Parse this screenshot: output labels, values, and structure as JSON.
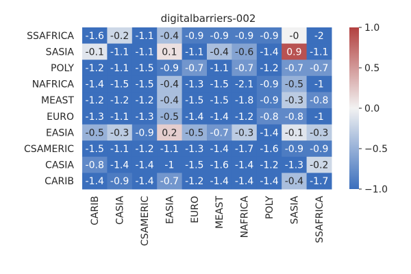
{
  "chart_data": {
    "type": "heatmap",
    "title": "digitalbarriers-002",
    "xlabel": "",
    "ylabel": "",
    "x_categories": [
      "CARIB",
      "CASIA",
      "CSAMERIC",
      "EASIA",
      "EURO",
      "MEAST",
      "NAFRICA",
      "POLY",
      "SASIA",
      "SSAFRICA"
    ],
    "y_categories": [
      "SSAFRICA",
      "SASIA",
      "POLY",
      "NAFRICA",
      "MEAST",
      "EURO",
      "EASIA",
      "CSAMERIC",
      "CASIA",
      "CARIB"
    ],
    "values": [
      [
        -1.6,
        -0.2,
        -1.1,
        -0.4,
        -0.9,
        -0.9,
        -0.9,
        -0.9,
        -0.0,
        -2.0
      ],
      [
        -0.1,
        -1.1,
        -1.1,
        0.1,
        -1.1,
        -0.4,
        -0.6,
        -1.4,
        0.9,
        -1.1
      ],
      [
        -1.2,
        -1.1,
        -1.5,
        -0.9,
        -0.7,
        -1.1,
        -0.7,
        -1.2,
        -0.7,
        -0.7
      ],
      [
        -1.4,
        -1.5,
        -1.5,
        -0.4,
        -1.3,
        -1.5,
        -2.1,
        -0.9,
        -0.5,
        -1.0
      ],
      [
        -1.2,
        -1.2,
        -1.2,
        -0.4,
        -1.5,
        -1.5,
        -1.8,
        -0.9,
        -0.3,
        -0.8
      ],
      [
        -1.3,
        -1.1,
        -1.3,
        -0.5,
        -1.4,
        -1.4,
        -1.2,
        -0.8,
        -0.8,
        -1.0
      ],
      [
        -0.5,
        -0.3,
        -0.9,
        0.2,
        -0.5,
        -0.7,
        -0.3,
        -1.4,
        -0.1,
        -0.3
      ],
      [
        -1.5,
        -1.1,
        -1.2,
        -1.1,
        -1.3,
        -1.4,
        -1.7,
        -1.6,
        -0.9,
        -0.9
      ],
      [
        -0.8,
        -1.4,
        -1.4,
        -1.0,
        -1.5,
        -1.6,
        -1.4,
        -1.2,
        -1.3,
        -0.2
      ],
      [
        -1.4,
        -0.9,
        -1.4,
        -0.7,
        -1.2,
        -1.4,
        -1.4,
        -1.4,
        -0.4,
        -1.7
      ]
    ],
    "display_labels": [
      [
        "-1.6",
        "-0.2",
        "-1.1",
        "-0.4",
        "-0.9",
        "-0.9",
        "-0.9",
        "-0.9",
        "-0",
        "-2"
      ],
      [
        "-0.1",
        "-1.1",
        "-1.1",
        "0.1",
        "-1.1",
        "-0.4",
        "-0.6",
        "-1.4",
        "0.9",
        "-1.1"
      ],
      [
        "-1.2",
        "-1.1",
        "-1.5",
        "-0.9",
        "-0.7",
        "-1.1",
        "-0.7",
        "-1.2",
        "-0.7",
        "-0.7"
      ],
      [
        "-1.4",
        "-1.5",
        "-1.5",
        "-0.4",
        "-1.3",
        "-1.5",
        "-2.1",
        "-0.9",
        "-0.5",
        "-1"
      ],
      [
        "-1.2",
        "-1.2",
        "-1.2",
        "-0.4",
        "-1.5",
        "-1.5",
        "-1.8",
        "-0.9",
        "-0.3",
        "-0.8"
      ],
      [
        "-1.3",
        "-1.1",
        "-1.3",
        "-0.5",
        "-1.4",
        "-1.4",
        "-1.2",
        "-0.8",
        "-0.8",
        "-1"
      ],
      [
        "-0.5",
        "-0.3",
        "-0.9",
        "0.2",
        "-0.5",
        "-0.7",
        "-0.3",
        "-1.4",
        "-0.1",
        "-0.3"
      ],
      [
        "-1.5",
        "-1.1",
        "-1.2",
        "-1.1",
        "-1.3",
        "-1.4",
        "-1.7",
        "-1.6",
        "-0.9",
        "-0.9"
      ],
      [
        "-0.8",
        "-1.4",
        "-1.4",
        "-1",
        "-1.5",
        "-1.6",
        "-1.4",
        "-1.2",
        "-1.3",
        "-0.2"
      ],
      [
        "-1.4",
        "-0.9",
        "-1.4",
        "-0.7",
        "-1.2",
        "-1.4",
        "-1.4",
        "-1.4",
        "-0.4",
        "-1.7"
      ]
    ],
    "colorbar": {
      "vmin": -1.0,
      "vmax": 1.0,
      "ticks": [
        1.0,
        0.5,
        0.0,
        -0.5,
        -1.0
      ],
      "tick_labels": [
        "1.0",
        "0.5",
        "0.0",
        "−0.5",
        "−1.0"
      ]
    },
    "colors": {
      "low": "#3b6fbd",
      "mid": "#f2f2f2",
      "high": "#b2403f"
    },
    "grid": false
  }
}
